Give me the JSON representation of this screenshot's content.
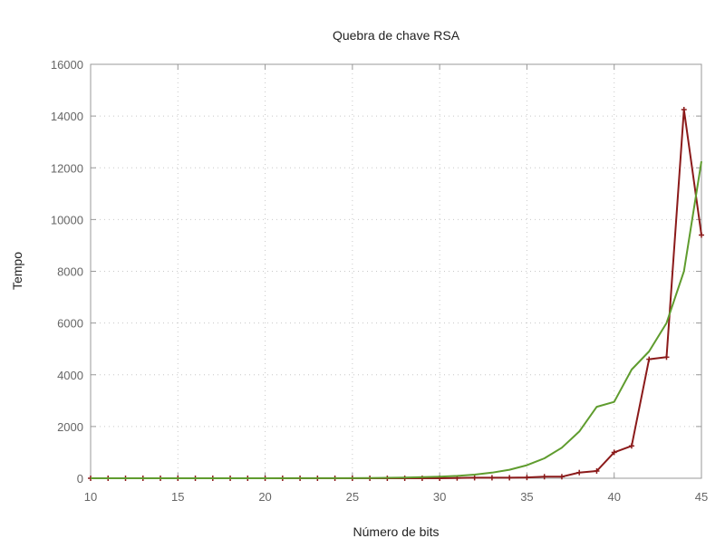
{
  "chart_data": {
    "type": "line",
    "title": "Quebra de chave RSA",
    "xlabel": "Número de bits",
    "ylabel": "Tempo",
    "xlim": [
      10,
      45
    ],
    "ylim": [
      0,
      16000
    ],
    "xticks": [
      10,
      15,
      20,
      25,
      30,
      35,
      40,
      45
    ],
    "yticks": [
      0,
      2000,
      4000,
      6000,
      8000,
      10000,
      12000,
      14000,
      16000
    ],
    "grid": true,
    "legend": "none",
    "series": [
      {
        "color": "#8b1a1a",
        "marker": "plus",
        "x": [
          10,
          11,
          12,
          13,
          14,
          15,
          16,
          17,
          18,
          19,
          20,
          21,
          22,
          23,
          24,
          25,
          26,
          27,
          28,
          29,
          30,
          31,
          32,
          33,
          34,
          35,
          36,
          37,
          38,
          39,
          40,
          41,
          42,
          43,
          44,
          45
        ],
        "y": [
          0,
          0,
          0,
          0,
          0,
          0,
          0,
          0,
          0,
          0,
          0,
          0,
          0,
          0,
          0,
          0,
          0,
          0,
          0,
          0,
          0,
          10,
          20,
          20,
          20,
          30,
          60,
          60,
          220,
          280,
          1000,
          1250,
          4600,
          4680,
          14250,
          9400
        ]
      },
      {
        "color": "#5f9c2e",
        "marker": "none",
        "fit": "exponential",
        "x": [
          10,
          12,
          14,
          16,
          18,
          20,
          22,
          24,
          26,
          28,
          30,
          31,
          32,
          33,
          34,
          35,
          36,
          37,
          38,
          39,
          40,
          41,
          42,
          43,
          44,
          45
        ],
        "y": [
          0,
          0,
          0,
          0,
          0,
          1,
          2,
          5,
          11,
          26,
          60,
          92,
          141,
          216,
          330,
          504,
          771,
          1180,
          1805,
          2761,
          2950,
          4200,
          4900,
          6000,
          8000,
          12250
        ]
      }
    ]
  }
}
